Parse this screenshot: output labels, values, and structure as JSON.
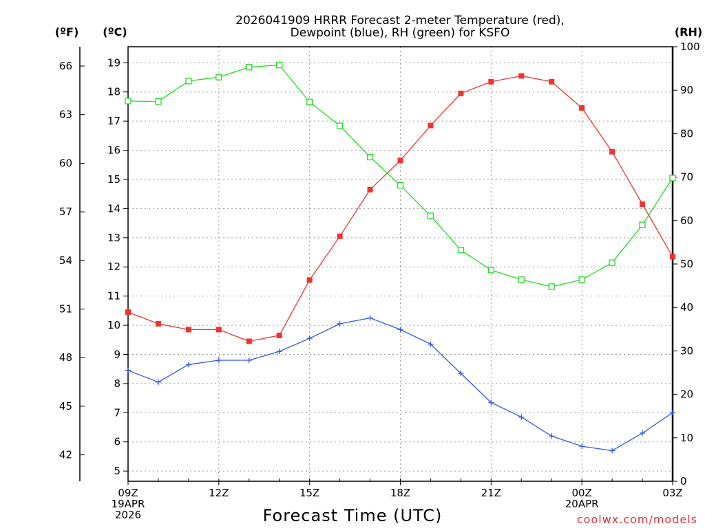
{
  "chart_data": {
    "type": "line",
    "title": [
      "2026041909 HRRR Forecast 2-meter Temperature (red),",
      "Dewpoint (blue), RH (green) for KSFO"
    ],
    "xlabel": "Forecast Time (UTC)",
    "x_hours": [
      0,
      1,
      2,
      3,
      4,
      5,
      6,
      7,
      8,
      9,
      10,
      11,
      12,
      13,
      14,
      15,
      16,
      17,
      18
    ],
    "x_ticks": [
      {
        "hour": 0,
        "lines": [
          "09Z",
          "19APR",
          "2026"
        ]
      },
      {
        "hour": 3,
        "lines": [
          "12Z"
        ]
      },
      {
        "hour": 6,
        "lines": [
          "15Z"
        ]
      },
      {
        "hour": 9,
        "lines": [
          "18Z"
        ]
      },
      {
        "hour": 12,
        "lines": [
          "21Z"
        ]
      },
      {
        "hour": 15,
        "lines": [
          "00Z",
          "20APR"
        ]
      },
      {
        "hour": 18,
        "lines": [
          "03Z"
        ]
      }
    ],
    "xlim": [
      0,
      18
    ],
    "y_left_c": {
      "unit": "(ºC)",
      "range": [
        4.65,
        19.55
      ],
      "ticks": [
        5,
        6,
        7,
        8,
        9,
        10,
        11,
        12,
        13,
        14,
        15,
        16,
        17,
        18,
        19
      ]
    },
    "y_left_f": {
      "unit": "(ºF)",
      "ticks": [
        42,
        45,
        48,
        51,
        54,
        57,
        60,
        63,
        66
      ]
    },
    "y_right_rh": {
      "unit": "(RH)",
      "range": [
        0,
        100
      ],
      "ticks": [
        0,
        10,
        20,
        30,
        40,
        50,
        60,
        70,
        80,
        90,
        100
      ]
    },
    "series": [
      {
        "name": "Temperature",
        "axis": "c",
        "color": "#ee3333",
        "marker": "filled-square",
        "values": [
          10.45,
          10.05,
          9.85,
          9.85,
          9.45,
          9.65,
          11.55,
          13.05,
          14.65,
          15.65,
          16.85,
          17.95,
          18.35,
          18.55,
          18.35,
          17.45,
          15.95,
          14.15,
          12.35
        ]
      },
      {
        "name": "Dewpoint",
        "axis": "c",
        "color": "#3355ee",
        "marker": "plus",
        "values": [
          8.45,
          8.05,
          8.65,
          8.8,
          8.8,
          9.1,
          9.55,
          10.05,
          10.25,
          9.85,
          9.35,
          8.35,
          7.35,
          6.85,
          6.2,
          5.85,
          5.7,
          6.3,
          7.0
        ]
      },
      {
        "name": "RH",
        "axis": "rh",
        "color": "#22dd22",
        "marker": "open-square",
        "values": [
          87.5,
          87.4,
          92.1,
          93.0,
          95.3,
          95.8,
          87.3,
          81.8,
          74.6,
          68.1,
          61.1,
          53.2,
          48.6,
          46.4,
          44.8,
          46.4,
          50.3,
          59.0,
          69.8
        ]
      }
    ]
  },
  "credit": "coolwx.com/models"
}
